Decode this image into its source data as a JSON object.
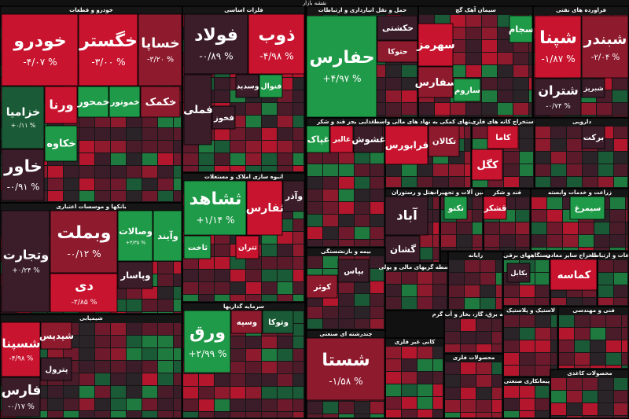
{
  "title": "نقشه بازار",
  "sectors": [
    {
      "name": "خودرو و قطعات",
      "tiles": [
        {
          "name": "خودرو",
          "change": "-۴/۰۷ %"
        },
        {
          "name": "خگستر",
          "change": "-۳/۰۰ %"
        },
        {
          "name": "خساپا",
          "change": "-۳/۲۰ %"
        },
        {
          "name": "خزامیا",
          "change": "+۰/۱۱ %"
        },
        {
          "name": "خاور",
          "change": "-۰/۹۱ %"
        },
        {
          "name": "ورنا"
        },
        {
          "name": "خکاوه"
        },
        {
          "name": "خمحور"
        },
        {
          "name": "خموتور"
        },
        {
          "name": "خکمک"
        }
      ]
    },
    {
      "name": "فلزات اساسی",
      "tiles": [
        {
          "name": "فولاد",
          "change": "-۰/۸۹ %"
        },
        {
          "name": "ذوب",
          "change": "-۴/۹۸ %"
        },
        {
          "name": "فملی"
        },
        {
          "name": "فخوز"
        },
        {
          "name": "وسدید"
        },
        {
          "name": "فنوال"
        }
      ]
    },
    {
      "name": "حمل و نقل انبارداری و ارتباطات",
      "tiles": [
        {
          "name": "حفارس",
          "change": "+۴/۹۷ %"
        },
        {
          "name": "حکشتی"
        },
        {
          "name": "حتوکا"
        }
      ]
    },
    {
      "name": "سیمان آهک گچ",
      "tiles": [
        {
          "name": "سهرمز"
        },
        {
          "name": "سفارس"
        },
        {
          "name": "سجام"
        },
        {
          "name": "ساروم"
        }
      ]
    },
    {
      "name": "فراورده های نفتی",
      "tiles": [
        {
          "name": "شپنا",
          "change": "-۱/۸۷ %"
        },
        {
          "name": "شبندر",
          "change": "-۲/۰۴ %"
        },
        {
          "name": "شتران",
          "change": "-۰/۷۴ %"
        },
        {
          "name": "شبریز"
        }
      ]
    },
    {
      "name": "بانکها و موسسات اعتباری",
      "tiles": [
        {
          "name": "وتجارت",
          "change": "+۰/۲۴ %"
        },
        {
          "name": "وبملت",
          "change": "-۰/۱۲ %"
        },
        {
          "name": "وصالات",
          "change": "+۳/۳۵ %"
        },
        {
          "name": "وآیند"
        },
        {
          "name": "دی",
          "change": "-۲/۸۵ %"
        },
        {
          "name": "وپاسار"
        }
      ]
    },
    {
      "name": "انبوه سازی املاک و مستغلات",
      "tiles": [
        {
          "name": "ثشاهد",
          "change": "+۱/۱۴ %"
        },
        {
          "name": "ثفارس"
        },
        {
          "name": "وآذر"
        },
        {
          "name": "ثاخت"
        },
        {
          "name": "ثتران"
        }
      ]
    },
    {
      "name": "غذایی بجز قند و شکر",
      "tiles": [
        {
          "name": "غپاک"
        },
        {
          "name": "غالبر"
        },
        {
          "name": "غشوش"
        }
      ]
    },
    {
      "name": "فعالیتهای کمکی به نهاد های مالی واسط",
      "tiles": [
        {
          "name": "فرابورس"
        },
        {
          "name": "تکالان"
        }
      ]
    },
    {
      "name": "استخراج کانه های فلزی",
      "tiles": [
        {
          "name": "کگل"
        },
        {
          "name": "کاما"
        }
      ]
    },
    {
      "name": "دارویی",
      "tiles": [
        {
          "name": "برکت"
        }
      ]
    },
    {
      "name": "هتل و رستوران",
      "tiles": [
        {
          "name": "آباد"
        },
        {
          "name": "گشان"
        }
      ]
    },
    {
      "name": "ماشین آلات و تجهیزات",
      "tiles": [
        {
          "name": "تکنو"
        }
      ]
    },
    {
      "name": "قند و شکر",
      "tiles": [
        {
          "name": "قشکر"
        }
      ]
    },
    {
      "name": "زراعت و خدمات وابسته",
      "tiles": [
        {
          "name": "سیمرغ"
        }
      ]
    },
    {
      "name": "بیمه و بازنشستگی",
      "tiles": [
        {
          "name": "کوثر"
        },
        {
          "name": "بپاس"
        }
      ]
    },
    {
      "name": "واسطه گریهای مالی و پولی",
      "tiles": []
    },
    {
      "name": "رایانه",
      "tiles": []
    },
    {
      "name": "دستگاههای برقی",
      "tiles": [
        {
          "name": "بکابل"
        }
      ]
    },
    {
      "name": "استخراج سایر معادن",
      "tiles": [
        {
          "name": "کماسه"
        }
      ]
    },
    {
      "name": "اطلاعات و ارتباطات",
      "tiles": []
    },
    {
      "name": "شیمیایی",
      "tiles": [
        {
          "name": "شسپنا",
          "change": "-۴/۹۸ %"
        },
        {
          "name": "فارس",
          "change": "-۰/۱۷ %"
        },
        {
          "name": "شپدیس"
        },
        {
          "name": "پترول"
        }
      ]
    },
    {
      "name": "سرمایه گذاریها",
      "tiles": [
        {
          "name": "ورق",
          "change": "+۲/۹۹ %"
        },
        {
          "name": "وسپه"
        },
        {
          "name": "وتوکا"
        }
      ]
    },
    {
      "name": "چندرشته ای صنعتی",
      "tiles": [
        {
          "name": "شستا",
          "change": "-۱/۵۸ %"
        }
      ]
    },
    {
      "name": "کانی غیر فلزی",
      "tiles": []
    },
    {
      "name": "عرضه برق، گاز، بخار و آب گرم",
      "tiles": []
    },
    {
      "name": "محصولات فلزی",
      "tiles": []
    },
    {
      "name": "لاستیک و پلاستیک",
      "tiles": []
    },
    {
      "name": "پیمانکاری صنعتی",
      "tiles": []
    },
    {
      "name": "فنی و مهندسی",
      "tiles": []
    },
    {
      "name": "محصولات کاغذی",
      "tiles": []
    }
  ]
}
